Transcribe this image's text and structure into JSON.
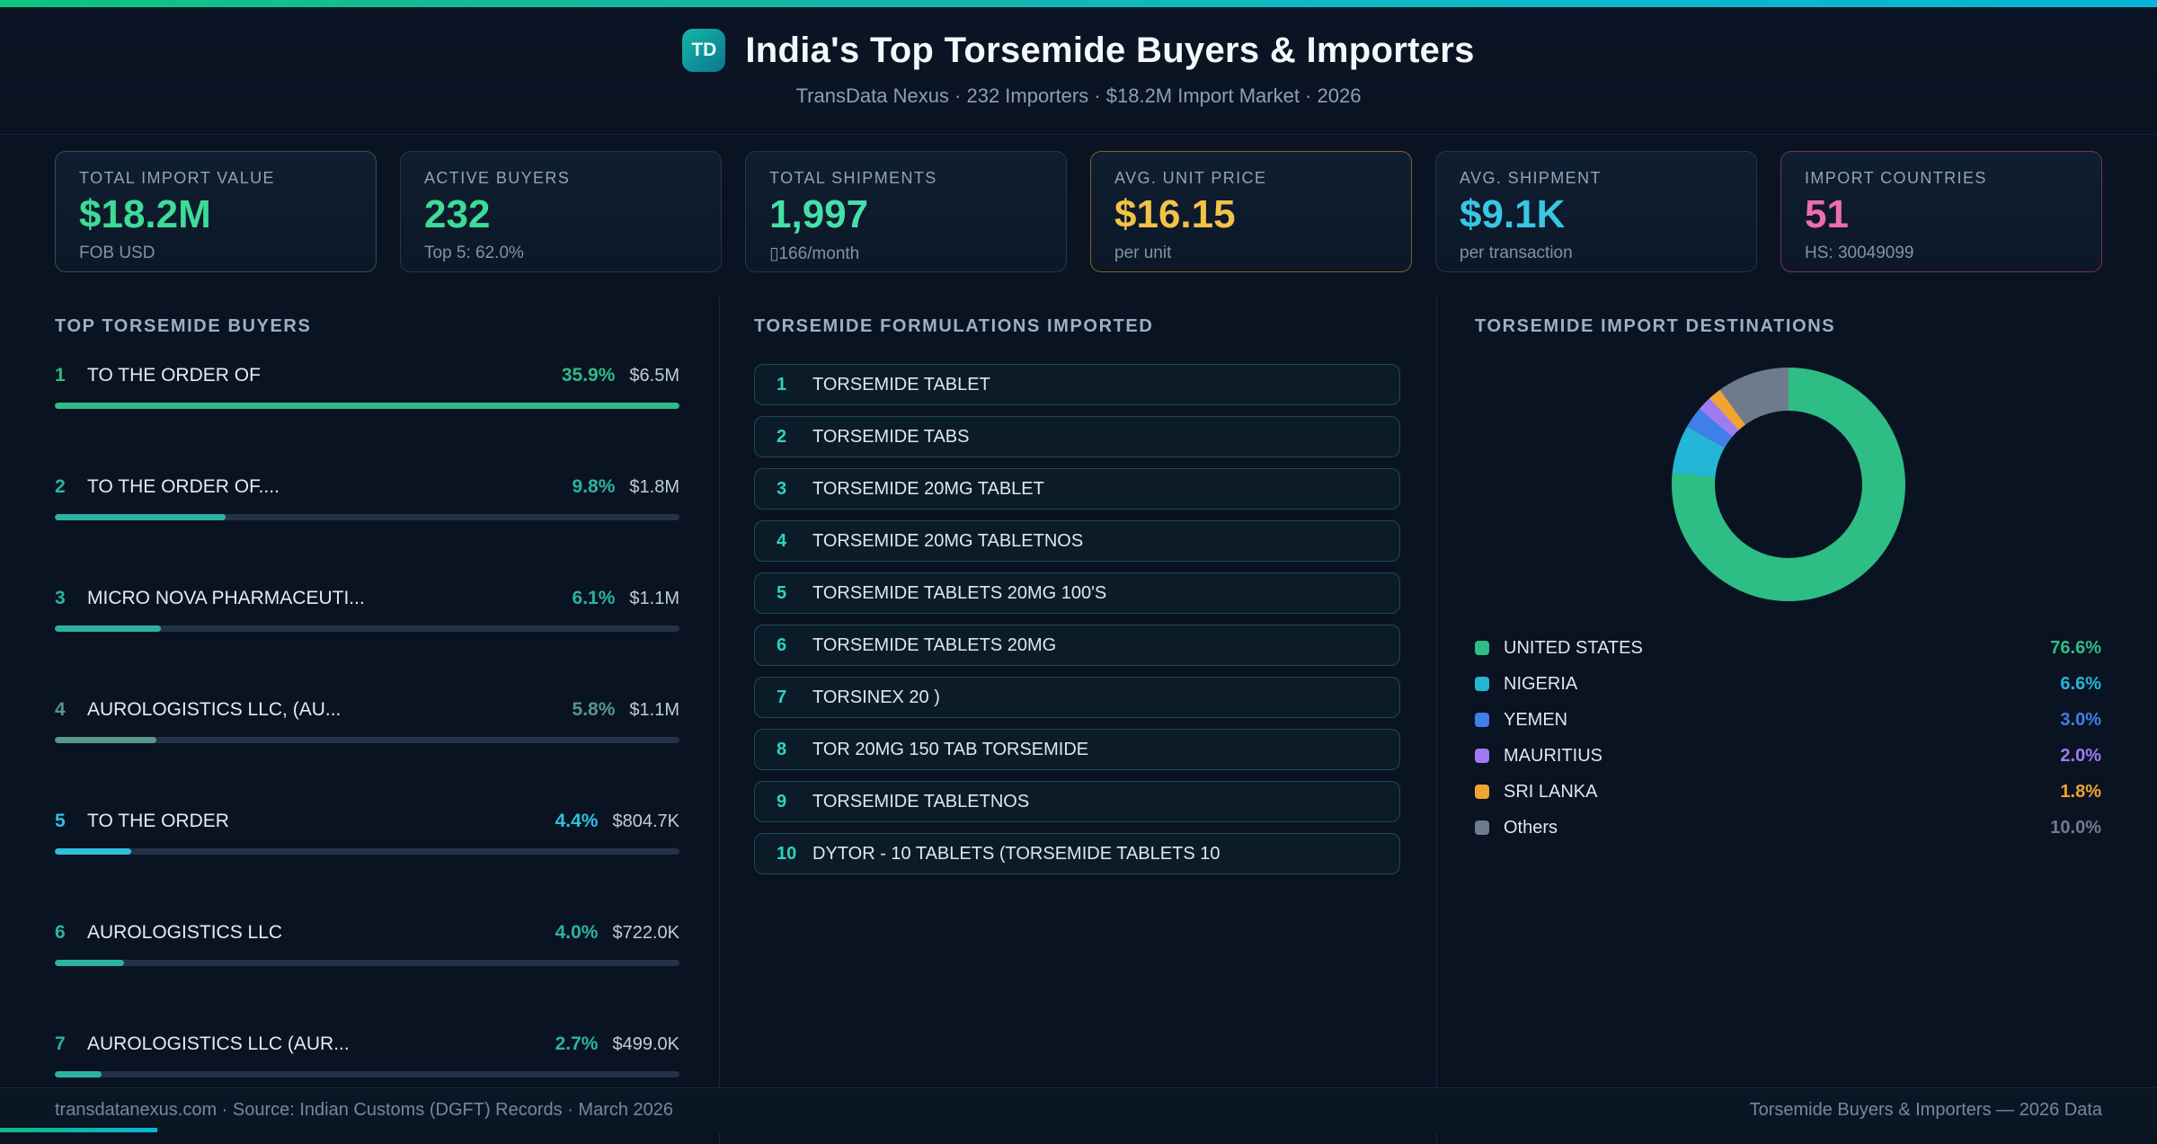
{
  "header": {
    "logo_text": "TD",
    "title": "India's Top Torsemide Buyers & Importers",
    "subtitle": "TransData Nexus · 232 Importers · $18.2M Import Market · 2026"
  },
  "stats": [
    {
      "label": "TOTAL IMPORT VALUE",
      "value": "$18.2M",
      "sub": "FOB USD",
      "value_color": "#3ddc97",
      "border_color": "#1f5c4c"
    },
    {
      "label": "ACTIVE BUYERS",
      "value": "232",
      "sub": "Top 5: 62.0%",
      "value_color": "#3ddc97",
      "border_color": "#21374f"
    },
    {
      "label": "TOTAL SHIPMENTS",
      "value": "1,997",
      "sub": "▯166/month",
      "value_color": "#45e0a8",
      "border_color": "#21374f"
    },
    {
      "label": "AVG. UNIT PRICE",
      "value": "$16.15",
      "sub": "per unit",
      "value_color": "#f4c247",
      "border_color": "#7a6226"
    },
    {
      "label": "AVG. SHIPMENT",
      "value": "$9.1K",
      "sub": "per transaction",
      "value_color": "#38c7e3",
      "border_color": "#21374f"
    },
    {
      "label": "IMPORT COUNTRIES",
      "value": "51",
      "sub": "HS: 30049099",
      "value_color": "#ef6daa",
      "border_color": "#7a3156"
    }
  ],
  "buyers": {
    "section_title": "TOP TORSEMIDE BUYERS",
    "items": [
      {
        "rank": "1",
        "name": "TO THE ORDER OF",
        "share_pct": 35.9,
        "share_label": "35.9%",
        "value": "$6.5M",
        "color": "#2ebd85"
      },
      {
        "rank": "2",
        "name": "TO THE ORDER OF....",
        "share_pct": 9.8,
        "share_label": "9.8%",
        "value": "$1.8M",
        "color": "#2bb3a3"
      },
      {
        "rank": "3",
        "name": "MICRO NOVA PHARMACEUTI...",
        "share_pct": 6.1,
        "share_label": "6.1%",
        "value": "$1.1M",
        "color": "#2bb3a3"
      },
      {
        "rank": "4",
        "name": "AUROLOGISTICS LLC, (AU...",
        "share_pct": 5.8,
        "share_label": "5.8%",
        "value": "$1.1M",
        "color": "#57958b"
      },
      {
        "rank": "5",
        "name": "TO THE ORDER",
        "share_pct": 4.4,
        "share_label": "4.4%",
        "value": "$804.7K",
        "color": "#2cc0dd"
      },
      {
        "rank": "6",
        "name": "AUROLOGISTICS LLC",
        "share_pct": 4.0,
        "share_label": "4.0%",
        "value": "$722.0K",
        "color": "#2bb3a3"
      },
      {
        "rank": "7",
        "name": "AUROLOGISTICS LLC (AUR...",
        "share_pct": 2.7,
        "share_label": "2.7%",
        "value": "$499.0K",
        "color": "#2bb3a3"
      }
    ]
  },
  "formulations": {
    "section_title": "TORSEMIDE FORMULATIONS IMPORTED",
    "items": [
      {
        "num": "1",
        "name": "TORSEMIDE TABLET"
      },
      {
        "num": "2",
        "name": "TORSEMIDE TABS"
      },
      {
        "num": "3",
        "name": "TORSEMIDE 20MG TABLET"
      },
      {
        "num": "4",
        "name": "TORSEMIDE 20MG TABLETNOS"
      },
      {
        "num": "5",
        "name": "TORSEMIDE TABLETS 20MG 100'S"
      },
      {
        "num": "6",
        "name": "TORSEMIDE TABLETS 20MG"
      },
      {
        "num": "7",
        "name": "TORSINEX 20 )"
      },
      {
        "num": "8",
        "name": "TOR 20MG 150 TAB TORSEMIDE"
      },
      {
        "num": "9",
        "name": "TORSEMIDE TABLETNOS"
      },
      {
        "num": "10",
        "name": "DYTOR - 10 TABLETS (TORSEMIDE TABLETS 10"
      }
    ]
  },
  "destinations": {
    "section_title": "TORSEMIDE IMPORT DESTINATIONS"
  },
  "chart_data": {
    "type": "pie",
    "donut": true,
    "title": "TORSEMIDE IMPORT DESTINATIONS",
    "labels": [
      "UNITED STATES",
      "NIGERIA",
      "YEMEN",
      "MAURITIUS",
      "SRI LANKA",
      "Others"
    ],
    "values": [
      76.6,
      6.6,
      3.0,
      2.0,
      1.8,
      10.0
    ],
    "colors": [
      "#2ebd85",
      "#23b6d6",
      "#3f7fe8",
      "#9f7bf2",
      "#f0a432",
      "#6e7b8c"
    ],
    "legend_position": "bottom"
  },
  "footer": {
    "left": "transdatanexus.com · Source: Indian Customs (DGFT) Records · March 2026",
    "right": "Torsemide Buyers & Importers — 2026 Data"
  }
}
